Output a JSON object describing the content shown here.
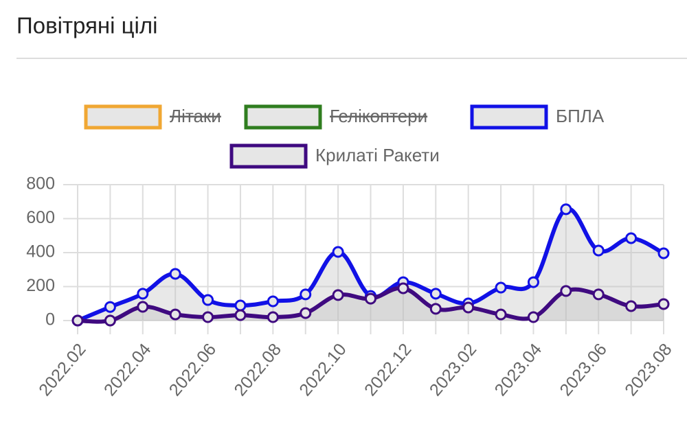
{
  "chart_data": {
    "type": "line",
    "title": "Повітряні цілі",
    "categories": [
      "2022.02",
      null,
      "2022.04",
      null,
      "2022.06",
      null,
      "2022.08",
      null,
      "2022.10",
      null,
      "2022.12",
      null,
      "2023.02",
      null,
      "2023.04",
      null,
      "2023.06",
      null,
      "2023.08"
    ],
    "ylim": [
      0,
      800
    ],
    "yticks": [
      0,
      200,
      400,
      600,
      800
    ],
    "grid": true,
    "legend": "top",
    "series": [
      {
        "name": "Літаки",
        "color": "#f0a733",
        "hidden": true,
        "values": [
          null,
          null,
          null,
          null,
          null,
          null,
          null,
          null,
          null,
          null,
          null,
          null,
          null,
          null,
          null,
          null,
          null,
          null,
          null
        ]
      },
      {
        "name": "Гелікоптери",
        "color": "#2f7d1f",
        "hidden": true,
        "values": [
          null,
          null,
          null,
          null,
          null,
          null,
          null,
          null,
          null,
          null,
          null,
          null,
          null,
          null,
          null,
          null,
          null,
          null,
          null
        ]
      },
      {
        "name": "БПЛА",
        "color": "#1111e6",
        "values": [
          0,
          80,
          158,
          275,
          121,
          89,
          113,
          154,
          404,
          145,
          226,
          158,
          101,
          194,
          226,
          655,
          412,
          485,
          396
        ]
      },
      {
        "name": "Крилаті Ракети",
        "color": "#3f0a80",
        "values": [
          0,
          0,
          81,
          36,
          20,
          32,
          20,
          44,
          150,
          129,
          190,
          69,
          77,
          36,
          20,
          174,
          154,
          85,
          97
        ]
      }
    ]
  }
}
